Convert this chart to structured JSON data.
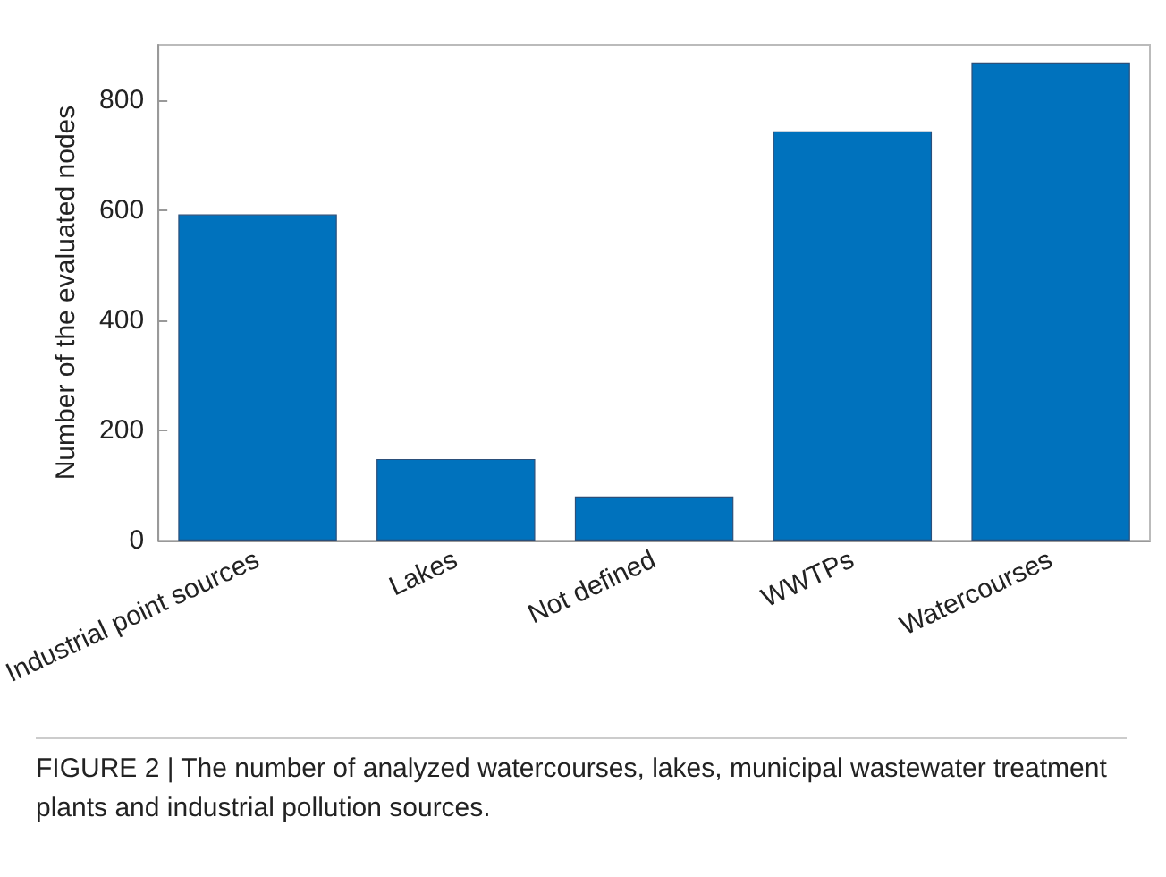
{
  "chart_data": {
    "type": "bar",
    "ylabel": "Number of the evaluated nodes",
    "categories": [
      "Industrial point sources",
      "Lakes",
      "Not defined",
      "WWTPs",
      "Watercourses"
    ],
    "values": [
      592,
      148,
      80,
      743,
      868
    ],
    "color": "#0072bd",
    "ylim": [
      0,
      900
    ],
    "yticks": [
      0,
      200,
      400,
      600,
      800
    ],
    "annotations": [
      "FIGURE 2 | The number of analyzed watercourses, lakes, municipal wastewater treatment plants and industrial pollution sources."
    ]
  }
}
